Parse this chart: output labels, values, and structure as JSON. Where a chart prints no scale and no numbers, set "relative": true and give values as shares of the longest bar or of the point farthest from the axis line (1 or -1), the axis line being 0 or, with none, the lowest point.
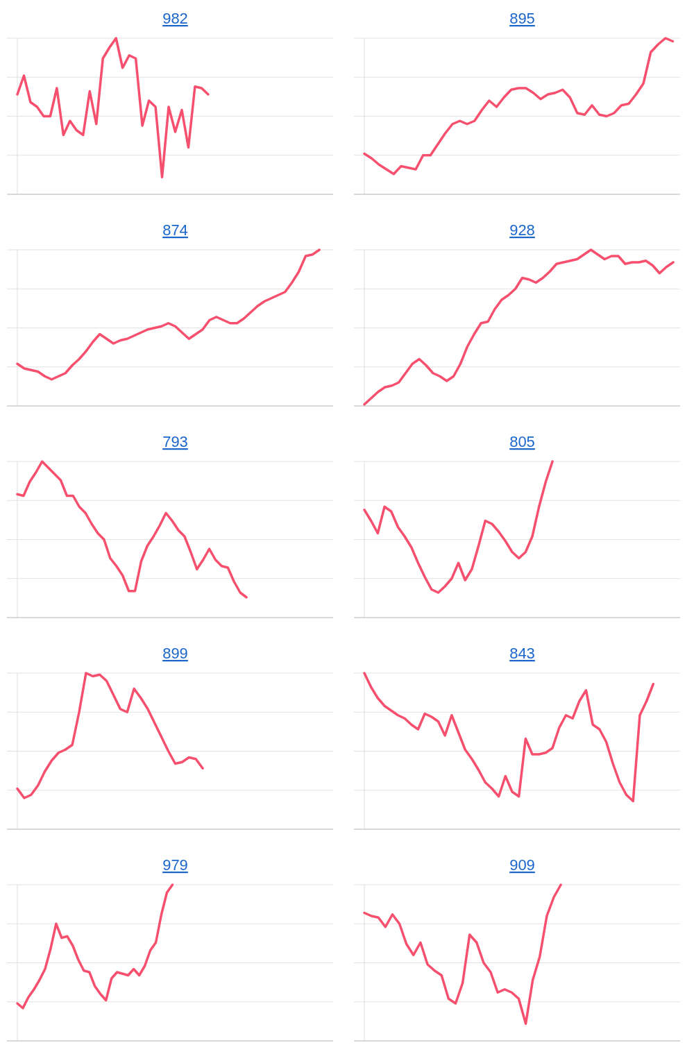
{
  "chart_data": [
    {
      "type": "line",
      "title": "982",
      "relative": true,
      "grid": true,
      "categories": [
        null,
        null,
        null,
        null,
        null,
        null,
        null,
        null,
        null,
        null,
        null,
        null,
        null,
        null,
        null,
        null,
        null,
        null,
        null,
        null,
        null,
        null,
        null,
        null,
        null,
        null,
        null,
        null,
        null,
        null,
        null,
        null,
        null,
        null,
        null,
        null,
        null,
        null,
        null,
        null,
        null,
        null,
        null,
        null,
        null,
        null,
        null,
        null,
        null
      ],
      "series": [
        {
          "color": "#f7506e",
          "values": [
            0.64,
            0.76,
            0.59,
            0.56,
            0.5,
            0.5,
            0.68,
            0.38,
            0.47,
            0.41,
            0.38,
            0.66,
            0.45,
            0.87,
            0.94,
            1,
            0.81,
            0.89,
            0.87,
            0.44,
            0.6,
            0.56,
            0.11,
            0.56,
            0.4,
            0.54,
            0.3,
            0.69,
            0.68,
            0.64,
            null,
            null,
            null,
            null,
            null,
            null,
            null,
            null,
            null,
            null,
            null,
            null,
            null,
            null,
            null,
            null,
            null,
            null,
            null
          ]
        }
      ]
    },
    {
      "type": "line",
      "title": "895",
      "relative": true,
      "grid": true,
      "categories": [
        null,
        null,
        null,
        null,
        null,
        null,
        null,
        null,
        null,
        null,
        null,
        null,
        null,
        null,
        null,
        null,
        null,
        null,
        null,
        null,
        null,
        null,
        null,
        null,
        null,
        null,
        null,
        null,
        null,
        null,
        null,
        null,
        null,
        null,
        null,
        null,
        null,
        null,
        null,
        null,
        null,
        null,
        null,
        null
      ],
      "series": [
        {
          "color": "#f7506e",
          "values": [
            0.26,
            0.23,
            0.19,
            0.16,
            0.13,
            0.18,
            0.17,
            0.16,
            0.25,
            0.25,
            0.32,
            0.39,
            0.45,
            0.47,
            0.45,
            0.47,
            0.54,
            0.6,
            0.56,
            0.62,
            0.67,
            0.68,
            0.68,
            0.65,
            0.61,
            0.64,
            0.65,
            0.67,
            0.62,
            0.52,
            0.51,
            0.57,
            0.51,
            0.5,
            0.52,
            0.57,
            0.58,
            0.64,
            0.71,
            0.91,
            0.96,
            1,
            0.98,
            null
          ]
        }
      ]
    },
    {
      "type": "line",
      "title": "874",
      "relative": true,
      "grid": true,
      "categories": [
        null,
        null,
        null,
        null,
        null,
        null,
        null,
        null,
        null,
        null,
        null,
        null,
        null,
        null,
        null,
        null,
        null,
        null,
        null,
        null,
        null,
        null,
        null,
        null,
        null,
        null,
        null,
        null,
        null,
        null,
        null,
        null,
        null,
        null,
        null,
        null,
        null,
        null,
        null,
        null,
        null,
        null,
        null,
        null,
        null,
        null,
        null
      ],
      "series": [
        {
          "color": "#f7506e",
          "values": [
            0.27,
            0.24,
            0.23,
            0.22,
            0.19,
            0.17,
            0.19,
            0.21,
            0.26,
            0.3,
            0.35,
            0.41,
            0.46,
            0.43,
            0.4,
            0.42,
            0.43,
            0.45,
            0.47,
            0.49,
            0.5,
            0.51,
            0.53,
            0.51,
            0.47,
            0.43,
            0.46,
            0.49,
            0.55,
            0.57,
            0.55,
            0.53,
            0.53,
            0.56,
            0.6,
            0.64,
            0.67,
            0.69,
            0.71,
            0.73,
            0.79,
            0.86,
            0.96,
            0.97,
            1,
            null,
            null
          ]
        }
      ]
    },
    {
      "type": "line",
      "title": "928",
      "relative": true,
      "grid": true,
      "categories": [
        null,
        null,
        null,
        null,
        null,
        null,
        null,
        null,
        null,
        null,
        null,
        null,
        null,
        null,
        null,
        null,
        null,
        null,
        null,
        null,
        null,
        null,
        null,
        null,
        null,
        null,
        null,
        null,
        null,
        null,
        null,
        null,
        null,
        null,
        null,
        null,
        null,
        null,
        null,
        null,
        null,
        null,
        null,
        null,
        null,
        null,
        null
      ],
      "series": [
        {
          "color": "#f7506e",
          "values": [
            0.01,
            0.05,
            0.09,
            0.12,
            0.13,
            0.15,
            0.21,
            0.27,
            0.3,
            0.26,
            0.21,
            0.19,
            0.16,
            0.19,
            0.27,
            0.38,
            0.46,
            0.53,
            0.54,
            0.62,
            0.68,
            0.71,
            0.75,
            0.82,
            0.81,
            0.79,
            0.82,
            0.86,
            0.91,
            0.92,
            0.93,
            0.94,
            0.97,
            1,
            0.97,
            0.94,
            0.96,
            0.96,
            0.91,
            0.92,
            0.92,
            0.93,
            0.9,
            0.85,
            0.89,
            0.92,
            null
          ]
        }
      ]
    },
    {
      "type": "line",
      "title": "793",
      "relative": true,
      "grid": true,
      "categories": [
        null,
        null,
        null,
        null,
        null,
        null,
        null,
        null,
        null,
        null,
        null,
        null,
        null,
        null,
        null,
        null,
        null,
        null,
        null,
        null,
        null,
        null,
        null,
        null,
        null,
        null,
        null,
        null,
        null,
        null,
        null,
        null,
        null,
        null,
        null,
        null,
        null,
        null,
        null,
        null,
        null,
        null,
        null,
        null,
        null,
        null,
        null,
        null,
        null,
        null,
        null,
        null
      ],
      "series": [
        {
          "color": "#f7506e",
          "values": [
            0.79,
            0.78,
            0.87,
            0.93,
            1,
            0.96,
            0.92,
            0.88,
            0.78,
            0.78,
            0.71,
            0.67,
            0.6,
            0.54,
            0.5,
            0.38,
            0.33,
            0.27,
            0.17,
            0.17,
            0.36,
            0.46,
            0.52,
            0.59,
            0.67,
            0.62,
            0.56,
            0.52,
            0.42,
            0.31,
            0.37,
            0.44,
            0.37,
            0.33,
            0.32,
            0.23,
            0.16,
            0.13,
            null,
            null,
            null,
            null,
            null,
            null,
            null,
            null,
            null,
            null,
            null,
            null,
            null,
            null
          ]
        }
      ]
    },
    {
      "type": "line",
      "title": "805",
      "relative": true,
      "grid": true,
      "categories": [
        null,
        null,
        null,
        null,
        null,
        null,
        null,
        null,
        null,
        null,
        null,
        null,
        null,
        null,
        null,
        null,
        null,
        null,
        null,
        null,
        null,
        null,
        null,
        null,
        null,
        null,
        null,
        null,
        null,
        null,
        null,
        null,
        null,
        null,
        null,
        null,
        null,
        null,
        null,
        null,
        null,
        null,
        null,
        null,
        null,
        null,
        null,
        null
      ],
      "series": [
        {
          "color": "#f7506e",
          "values": [
            0.69,
            0.62,
            0.54,
            0.71,
            0.68,
            0.58,
            0.52,
            0.45,
            0.35,
            0.26,
            0.18,
            0.16,
            0.2,
            0.25,
            0.35,
            0.24,
            0.31,
            0.46,
            0.62,
            0.6,
            0.55,
            0.49,
            0.42,
            0.38,
            0.42,
            0.52,
            0.71,
            0.87,
            1,
            null,
            null,
            null,
            null,
            null,
            null,
            null,
            null,
            null,
            null,
            null,
            null,
            null,
            null,
            null,
            null,
            null,
            null,
            null
          ]
        }
      ]
    },
    {
      "type": "line",
      "title": "899",
      "relative": true,
      "grid": true,
      "categories": [
        null,
        null,
        null,
        null,
        null,
        null,
        null,
        null,
        null,
        null,
        null,
        null,
        null,
        null,
        null,
        null,
        null,
        null,
        null,
        null,
        null,
        null,
        null,
        null,
        null,
        null,
        null,
        null,
        null,
        null,
        null,
        null,
        null,
        null,
        null,
        null,
        null,
        null,
        null,
        null,
        null,
        null,
        null,
        null,
        null,
        null,
        null
      ],
      "series": [
        {
          "color": "#f7506e",
          "values": [
            0.26,
            0.2,
            0.22,
            0.28,
            0.37,
            0.44,
            0.49,
            0.51,
            0.54,
            0.75,
            1,
            0.98,
            0.99,
            0.95,
            0.86,
            0.77,
            0.75,
            0.9,
            0.84,
            0.77,
            0.68,
            0.59,
            0.5,
            0.42,
            0.43,
            0.46,
            0.45,
            0.39,
            null,
            null,
            null,
            null,
            null,
            null,
            null,
            null,
            null,
            null,
            null,
            null,
            null,
            null,
            null,
            null,
            null,
            null,
            null
          ]
        }
      ]
    },
    {
      "type": "line",
      "title": "843",
      "relative": true,
      "grid": true,
      "categories": [
        null,
        null,
        null,
        null,
        null,
        null,
        null,
        null,
        null,
        null,
        null,
        null,
        null,
        null,
        null,
        null,
        null,
        null,
        null,
        null,
        null,
        null,
        null,
        null,
        null,
        null,
        null,
        null,
        null,
        null,
        null,
        null,
        null,
        null,
        null,
        null,
        null,
        null,
        null,
        null,
        null,
        null,
        null,
        null,
        null,
        null,
        null,
        null
      ],
      "series": [
        {
          "color": "#f7506e",
          "values": [
            1,
            0.91,
            0.84,
            0.79,
            0.76,
            0.73,
            0.71,
            0.67,
            0.64,
            0.74,
            0.72,
            0.69,
            0.6,
            0.73,
            0.62,
            0.51,
            0.45,
            0.38,
            0.3,
            0.26,
            0.21,
            0.34,
            0.24,
            0.21,
            0.58,
            0.48,
            0.48,
            0.49,
            0.52,
            0.65,
            0.73,
            0.71,
            0.82,
            0.89,
            0.67,
            0.64,
            0.56,
            0.42,
            0.3,
            0.22,
            0.18,
            0.73,
            0.82,
            0.93,
            null,
            null,
            null,
            null
          ]
        }
      ]
    },
    {
      "type": "line",
      "title": "979",
      "relative": true,
      "grid": true,
      "categories": [
        null,
        null,
        null,
        null,
        null,
        null,
        null,
        null,
        null,
        null,
        null,
        null,
        null,
        null,
        null,
        null,
        null,
        null,
        null,
        null,
        null,
        null,
        null,
        null,
        null,
        null,
        null,
        null,
        null,
        null,
        null,
        null,
        null,
        null,
        null,
        null,
        null,
        null,
        null,
        null,
        null,
        null,
        null,
        null,
        null,
        null,
        null,
        null,
        null,
        null,
        null,
        null,
        null,
        null,
        null,
        null,
        null,
        null
      ],
      "series": [
        {
          "color": "#f7506e",
          "values": [
            0.24,
            0.21,
            0.28,
            0.33,
            0.39,
            0.46,
            0.59,
            0.75,
            0.66,
            0.67,
            0.61,
            0.52,
            0.45,
            0.44,
            0.35,
            0.3,
            0.26,
            0.4,
            0.44,
            0.43,
            0.42,
            0.46,
            0.42,
            0.48,
            0.58,
            0.63,
            0.81,
            0.95,
            1,
            null,
            null,
            null,
            null,
            null,
            null,
            null,
            null,
            null,
            null,
            null,
            null,
            null,
            null,
            null,
            null,
            null,
            null,
            null,
            null,
            null,
            null,
            null,
            null,
            null,
            null,
            null,
            null,
            null
          ]
        }
      ]
    },
    {
      "type": "line",
      "title": "909",
      "relative": true,
      "grid": true,
      "categories": [
        null,
        null,
        null,
        null,
        null,
        null,
        null,
        null,
        null,
        null,
        null,
        null,
        null,
        null,
        null,
        null,
        null,
        null,
        null,
        null,
        null,
        null,
        null,
        null,
        null,
        null,
        null,
        null,
        null,
        null,
        null,
        null,
        null,
        null,
        null,
        null,
        null,
        null,
        null,
        null,
        null,
        null,
        null,
        null,
        null,
        null
      ],
      "series": [
        {
          "color": "#f7506e",
          "values": [
            0.82,
            0.8,
            0.79,
            0.73,
            0.81,
            0.75,
            0.62,
            0.55,
            0.63,
            0.49,
            0.45,
            0.42,
            0.27,
            0.24,
            0.37,
            0.68,
            0.63,
            0.5,
            0.44,
            0.31,
            0.33,
            0.31,
            0.27,
            0.11,
            0.39,
            0.54,
            0.8,
            0.92,
            1,
            null,
            null,
            null,
            null,
            null,
            null,
            null,
            null,
            null,
            null,
            null,
            null,
            null,
            null,
            null,
            null,
            null
          ]
        }
      ]
    }
  ]
}
